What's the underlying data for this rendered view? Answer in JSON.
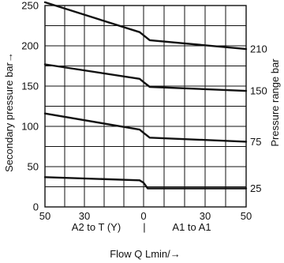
{
  "chart_data": {
    "type": "line",
    "ylabel": "Secondary pressure bar→",
    "xlabel": "Flow Q Lmin/→",
    "right_label": "Pressure range bar",
    "direction_labels": {
      "left": "A2 to T (Y)",
      "separator": "|",
      "right": "A1 to A1"
    },
    "x_ticks": [
      "50",
      "30",
      "0",
      "30",
      "50"
    ],
    "y_ticks": [
      "0",
      "50",
      "100",
      "150",
      "200",
      "250"
    ],
    "y_range": [
      0,
      250
    ],
    "x_range": [
      -50,
      50
    ],
    "grid": true,
    "series": [
      {
        "name": "25",
        "points": [
          [
            -50,
            37
          ],
          [
            -2,
            33
          ],
          [
            0,
            30
          ],
          [
            2,
            23
          ],
          [
            50,
            23
          ]
        ]
      },
      {
        "name": "75",
        "points": [
          [
            -50,
            116
          ],
          [
            -2,
            96
          ],
          [
            0,
            92
          ],
          [
            3,
            86
          ],
          [
            50,
            81
          ]
        ]
      },
      {
        "name": "150",
        "points": [
          [
            -50,
            177
          ],
          [
            -2,
            159
          ],
          [
            0,
            155
          ],
          [
            3,
            149
          ],
          [
            50,
            144
          ]
        ]
      },
      {
        "name": "210",
        "points": [
          [
            -50,
            254
          ],
          [
            -2,
            217
          ],
          [
            0,
            213
          ],
          [
            3,
            207
          ],
          [
            50,
            196
          ]
        ]
      }
    ]
  }
}
